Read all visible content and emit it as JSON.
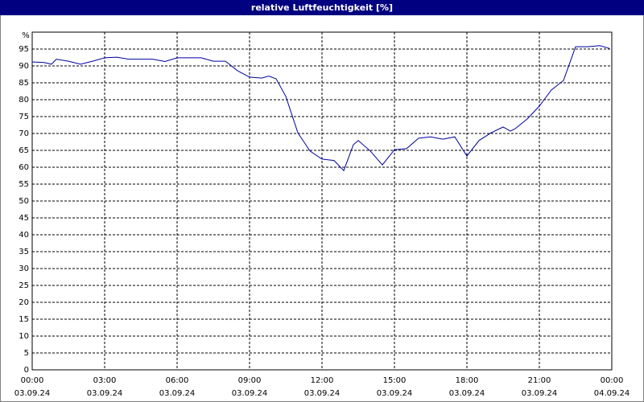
{
  "chart_data": {
    "type": "line",
    "title": "relative Luftfeuchtigkeit [%]",
    "y_label": "%",
    "x": [
      0,
      0.5,
      0.8,
      1,
      1.5,
      2,
      2.5,
      3,
      3.5,
      4,
      4.5,
      5,
      5.5,
      6,
      6.5,
      7,
      7.5,
      8,
      8.5,
      9,
      9.5,
      9.8,
      10.1,
      10.5,
      11,
      11.5,
      12,
      12.5,
      12.9,
      13.3,
      13.5,
      14,
      14.5,
      15,
      15.5,
      16,
      16.5,
      17,
      17.5,
      18,
      18.5,
      19,
      19.5,
      19.8,
      20,
      20.5,
      21,
      21.5,
      22,
      22.5,
      23,
      23.5,
      23.9
    ],
    "series": [
      {
        "name": "relative Luftfeuchtigkeit",
        "color": "#0000a0",
        "values": [
          91.2,
          91,
          90.5,
          92,
          91.4,
          90.5,
          91.4,
          92.4,
          92.6,
          92,
          92,
          92,
          91.3,
          92.4,
          92.4,
          92.4,
          91.4,
          91.4,
          88.6,
          86.7,
          86.4,
          87,
          86.2,
          81,
          70.2,
          64.8,
          62.4,
          62,
          59,
          66.7,
          67.9,
          64.8,
          60.7,
          65.2,
          65.5,
          68.6,
          69,
          68.3,
          69,
          63.3,
          67.9,
          70.2,
          71.9,
          70.7,
          71.4,
          74.3,
          78.1,
          82.9,
          85.7,
          95.7,
          95.7,
          96,
          95.2
        ]
      }
    ],
    "xlim": [
      0,
      24
    ],
    "xticks": [
      {
        "value": 0,
        "label": "00:00"
      },
      {
        "value": 3,
        "label": "03:00"
      },
      {
        "value": 6,
        "label": "06:00"
      },
      {
        "value": 9,
        "label": "09:00"
      },
      {
        "value": 12,
        "label": "12:00"
      },
      {
        "value": 15,
        "label": "15:00"
      },
      {
        "value": 18,
        "label": "18:00"
      },
      {
        "value": 21,
        "label": "21:00"
      },
      {
        "value": 24,
        "label": "00:00"
      }
    ],
    "xtick_dates": [
      "03.09.24",
      "03.09.24",
      "03.09.24",
      "03.09.24",
      "03.09.24",
      "03.09.24",
      "03.09.24",
      "03.09.24",
      "04.09.24"
    ],
    "ylim": [
      0,
      100
    ],
    "yticks": [
      0,
      5,
      10,
      15,
      20,
      25,
      30,
      35,
      40,
      45,
      50,
      55,
      60,
      65,
      70,
      75,
      80,
      85,
      90,
      95
    ],
    "grid": true
  }
}
